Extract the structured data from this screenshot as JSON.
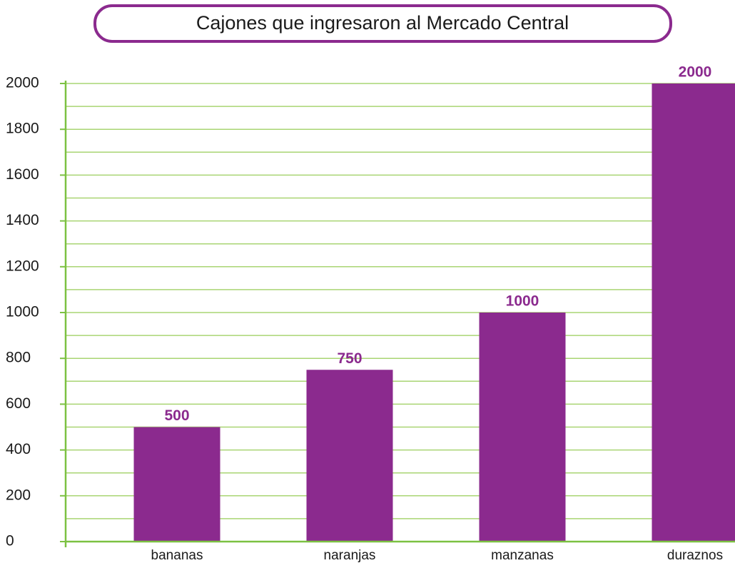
{
  "chart_data": {
    "type": "bar",
    "title": "Cajones que ingresaron al Mercado Central",
    "categories": [
      "bananas",
      "naranjas",
      "manzanas",
      "duraznos"
    ],
    "values": [
      500,
      750,
      1000,
      2000
    ],
    "color": "#8b2a8e",
    "ylim": [
      0,
      2000
    ],
    "yticks": [
      0,
      200,
      400,
      600,
      800,
      1000,
      1200,
      1400,
      1600,
      1800,
      2000
    ],
    "minor_yticks": [
      100,
      300,
      500,
      700,
      900,
      1100,
      1300,
      1500,
      1700,
      1900
    ],
    "grid": true,
    "grid_color": "#a9d573",
    "axis_color": "#7cc142"
  }
}
